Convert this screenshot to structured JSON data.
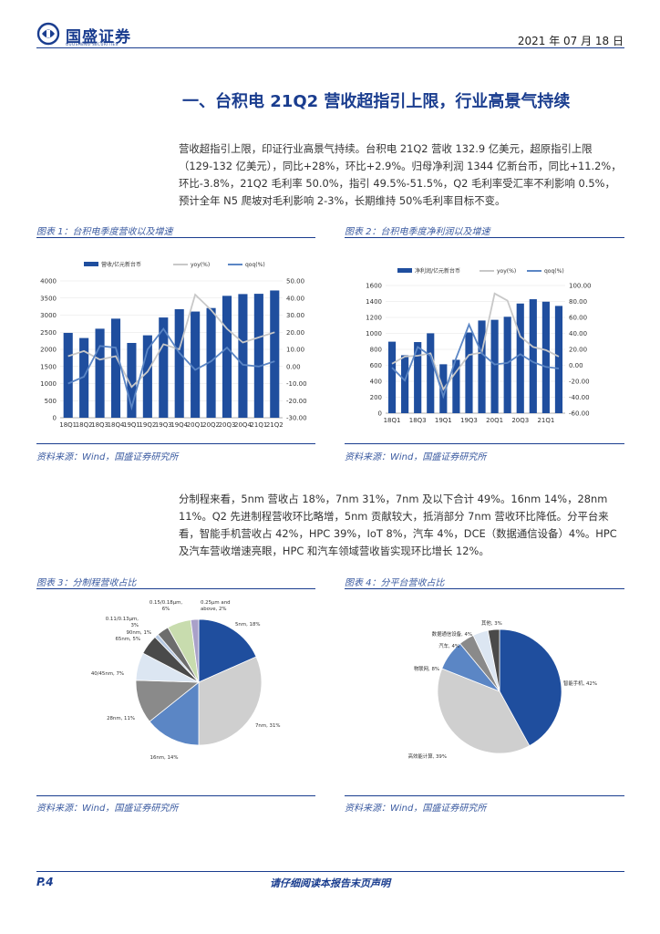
{
  "header": {
    "logo_text": "国盛证券",
    "logo_sub": "GUOSHENG SECURITIES",
    "date": "2021 年 07 月 18 日"
  },
  "section_title": "一、台积电 21Q2 营收超指引上限，行业高景气持续",
  "para1": "营收超指引上限，印证行业高景气持续。台积电 21Q2 营收 132.9 亿美元，超原指引上限（129-132 亿美元），同比+28%，环比+2.9%。归母净利润 1344 亿新台币，同比+11.2%，环比-3.8%，21Q2 毛利率 50.0%，指引 49.5%-51.5%，Q2 毛利率受汇率不利影响 0.5%，预计全年 N5 爬坡对毛利影响 2-3%，长期维持 50%毛利率目标不变。",
  "para2": "分制程来看，5nm 营收占 18%，7nm 31%，7nm 及以下合计 49%。16nm 14%，28nm 11%。Q2 先进制程营收环比略增，5nm 贡献较大，抵消部分 7nm 营收环比降低。分平台来看，智能手机营收占 42%，HPC 39%，IoT 8%，汽车 4%，DCE（数据通信设备）4%。HPC 及汽车营收增速亮眼，HPC 和汽车领域营收皆实现环比增长 12%。",
  "fig1": {
    "title": "图表 1：台积电季度营收以及增速",
    "source": "资料来源：Wind，国盛证券研究所"
  },
  "fig2": {
    "title": "图表 2：台积电季度净利润以及增速",
    "source": "资料来源：Wind，国盛证券研究所"
  },
  "fig3": {
    "title": "图表 3：分制程营收占比",
    "source": "资料来源：Wind，国盛证券研究所"
  },
  "fig4": {
    "title": "图表 4：分平台营收占比",
    "source": "资料来源：Wind，国盛证券研究所"
  },
  "footer": {
    "page": "P.4",
    "disclaimer": "请仔细阅读本报告末页声明"
  },
  "colors": {
    "brand": "#1a3d8f",
    "bar": "#1f4e9e",
    "yoy": "#c8c8c8",
    "qoq": "#5b86c5"
  },
  "chart_data": [
    {
      "type": "bar",
      "categories": [
        "18Q1",
        "18Q2",
        "18Q3",
        "18Q4",
        "19Q1",
        "19Q2",
        "19Q3",
        "19Q4",
        "20Q1",
        "20Q2",
        "20Q3",
        "20Q4",
        "21Q1",
        "21Q2"
      ],
      "tick_labels": [
        "18Q1",
        "18Q2",
        "18Q3",
        "18Q4",
        "19Q1",
        "19Q2",
        "19Q3",
        "19Q4",
        "20Q1",
        "20Q2",
        "20Q3",
        "20Q4",
        "21Q1",
        "21Q2"
      ],
      "series": [
        {
          "name": "营收/亿元新台币",
          "type": "bar",
          "axis": "left",
          "values": [
            2481,
            2331,
            2603,
            2897,
            2187,
            2410,
            2931,
            3173,
            3105,
            3208,
            3564,
            3616,
            3624,
            3721
          ]
        },
        {
          "name": "yoy(%)",
          "type": "line",
          "axis": "right",
          "values": [
            6,
            9,
            4,
            6,
            -12,
            -3,
            13,
            10,
            42,
            33,
            22,
            14,
            17,
            20
          ]
        },
        {
          "name": "qoq(%)",
          "type": "line",
          "axis": "right",
          "values": [
            -10,
            -6,
            12,
            11,
            -24,
            10,
            22,
            8,
            -2,
            3,
            11,
            1,
            0,
            3
          ]
        }
      ],
      "ylim_left": [
        0,
        4000
      ],
      "yticks_left": [
        "0",
        "500",
        "1000",
        "1500",
        "2000",
        "2500",
        "3000",
        "3500",
        "4000"
      ],
      "ylim_right": [
        -30,
        50
      ],
      "yticks_right": [
        "-30.00",
        "-20.00",
        "-10.00",
        "0.00",
        "10.00",
        "20.00",
        "30.00",
        "40.00",
        "50.00"
      ],
      "legend": "top"
    },
    {
      "type": "bar",
      "categories": [
        "18Q1",
        "18Q2",
        "18Q3",
        "18Q4",
        "19Q1",
        "19Q2",
        "19Q3",
        "19Q4",
        "20Q1",
        "20Q2",
        "20Q3",
        "20Q4",
        "21Q1",
        "21Q2"
      ],
      "tick_labels": [
        "18Q1",
        "",
        "18Q3",
        "",
        "19Q1",
        "",
        "19Q3",
        "",
        "20Q1",
        "",
        "20Q3",
        "",
        "21Q1",
        ""
      ],
      "series": [
        {
          "name": "净利润/亿元新台币",
          "type": "bar",
          "axis": "left",
          "values": [
            896,
            726,
            891,
            1001,
            613,
            669,
            1011,
            1161,
            1170,
            1208,
            1374,
            1428,
            1397,
            1344
          ]
        },
        {
          "name": "yoy(%)",
          "type": "line",
          "axis": "right",
          "values": [
            2,
            11,
            12,
            15,
            -30,
            -8,
            13,
            16,
            90,
            81,
            36,
            23,
            19,
            11
          ]
        },
        {
          "name": "qoq(%)",
          "type": "line",
          "axis": "right",
          "values": [
            -3,
            -19,
            23,
            12,
            -39,
            9,
            51,
            15,
            1,
            3,
            14,
            4,
            -2,
            -4
          ]
        }
      ],
      "ylim_left": [
        0,
        1600
      ],
      "yticks_left": [
        "0",
        "200",
        "400",
        "600",
        "800",
        "1000",
        "1200",
        "1400",
        "1600"
      ],
      "ylim_right": [
        -60,
        100
      ],
      "yticks_right": [
        "-60.00",
        "-40.00",
        "-20.00",
        "0.00",
        "20.00",
        "40.00",
        "60.00",
        "80.00",
        "100.00"
      ],
      "legend": "top"
    },
    {
      "type": "pie",
      "categories": [
        "5nm",
        "7nm",
        "16nm",
        "28nm",
        "40/45nm",
        "65nm",
        "90nm",
        "0.11/0.13μm",
        "0.15/0.18μm",
        "0.25μm and above"
      ],
      "labels": [
        "5nm, 18%",
        "7nm, 31%",
        "16nm, 14%",
        "28nm, 11%",
        "40/45nm, 7%",
        "65nm, 5%",
        "90nm, 1%",
        "0.11/0.13μm, 3%",
        "0.15/0.18μm, 6%",
        "0.25μm and above, 2%"
      ],
      "values": [
        18,
        31,
        14,
        11,
        7,
        5,
        1,
        3,
        6,
        2
      ],
      "colors": [
        "#1f4e9e",
        "#cfcfcf",
        "#5b86c5",
        "#8a8a8a",
        "#dce6f2",
        "#4a4a4a",
        "#b7c9e2",
        "#6d6d6d",
        "#c8dcae",
        "#a9a1c9"
      ]
    },
    {
      "type": "pie",
      "categories": [
        "智能手机",
        "高效能计算",
        "物联网",
        "汽车",
        "数据通信设备",
        "其他"
      ],
      "labels": [
        "智能手机, 42%",
        "高效能计算, 39%",
        "物联网, 8%",
        "汽车, 4%",
        "数据通信设备, 4%",
        "其他, 3%"
      ],
      "values": [
        42,
        39,
        8,
        4,
        4,
        3
      ],
      "colors": [
        "#1f4e9e",
        "#cfcfcf",
        "#5b86c5",
        "#8a8a8a",
        "#dce6f2",
        "#4a4a4a"
      ]
    }
  ]
}
